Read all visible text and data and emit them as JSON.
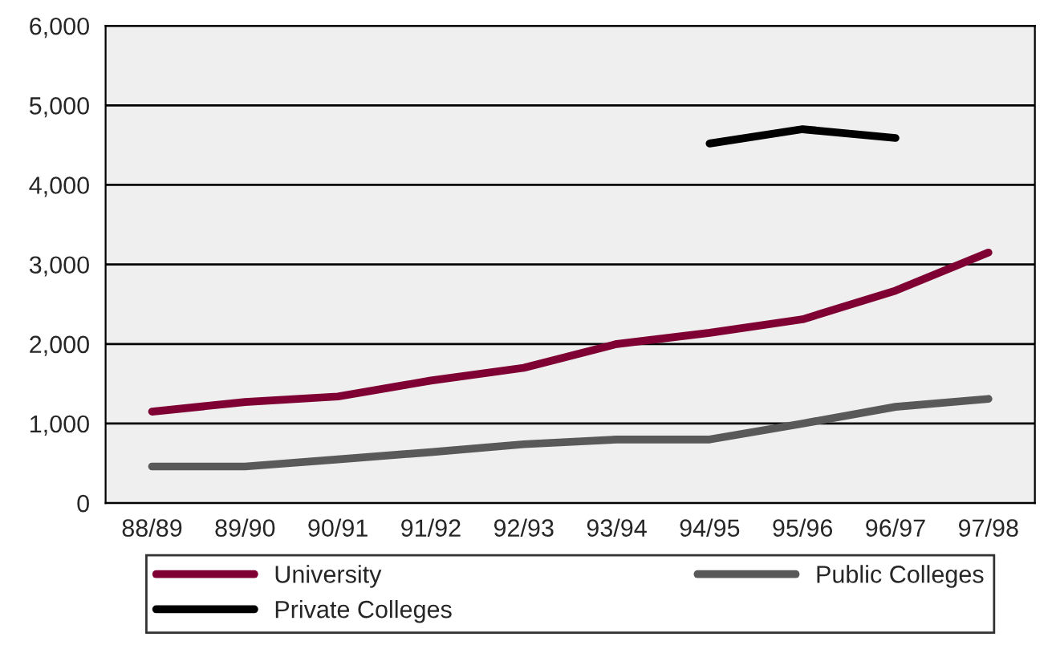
{
  "chart_data": {
    "type": "line",
    "categories": [
      "88/89",
      "89/90",
      "90/91",
      "91/92",
      "92/93",
      "93/94",
      "94/95",
      "95/96",
      "96/97",
      "97/98"
    ],
    "series": [
      {
        "name": "University",
        "color": "#7f0032",
        "values": [
          1150,
          1270,
          1340,
          1540,
          1700,
          2000,
          2140,
          2310,
          2670,
          3150
        ]
      },
      {
        "name": "Private Colleges",
        "color": "#000000",
        "values": [
          null,
          null,
          null,
          null,
          null,
          null,
          4520,
          4700,
          4590,
          null
        ]
      },
      {
        "name": "Public Colleges",
        "color": "#595959",
        "values": [
          460,
          460,
          550,
          640,
          740,
          800,
          800,
          1000,
          1210,
          1310
        ]
      }
    ],
    "ylim": [
      0,
      6000
    ],
    "yticks": [
      {
        "value": 0,
        "label": "0"
      },
      {
        "value": 1000,
        "label": "1,000"
      },
      {
        "value": 2000,
        "label": "2,000"
      },
      {
        "value": 3000,
        "label": "3,000"
      },
      {
        "value": 4000,
        "label": "4,000"
      },
      {
        "value": 5000,
        "label": "5,000"
      },
      {
        "value": 6000,
        "label": "6,000"
      }
    ],
    "grid": "y",
    "legend": "bottom",
    "marker": "none",
    "line_style": "solid"
  }
}
